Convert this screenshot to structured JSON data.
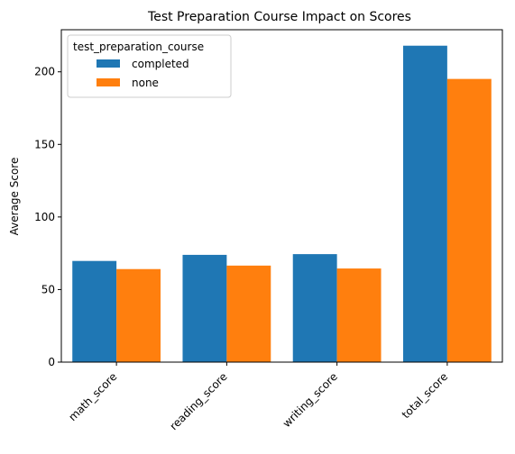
{
  "chart_data": {
    "type": "bar",
    "title": "Test Preparation Course Impact on Scores",
    "xlabel": "",
    "ylabel": "Average Score",
    "categories": [
      "math_score",
      "reading_score",
      "writing_score",
      "total_score"
    ],
    "series": [
      {
        "name": "completed",
        "color": "#1f77b4",
        "values": [
          69.7,
          73.9,
          74.4,
          218.0
        ]
      },
      {
        "name": "none",
        "color": "#ff7f0e",
        "values": [
          64.1,
          66.5,
          64.5,
          195.1
        ]
      }
    ],
    "ylim": [
      0,
      229
    ],
    "yticks": [
      0,
      50,
      100,
      150,
      200
    ],
    "legend": {
      "title": "test_preparation_course",
      "placement": "top-left"
    },
    "grid": false
  }
}
